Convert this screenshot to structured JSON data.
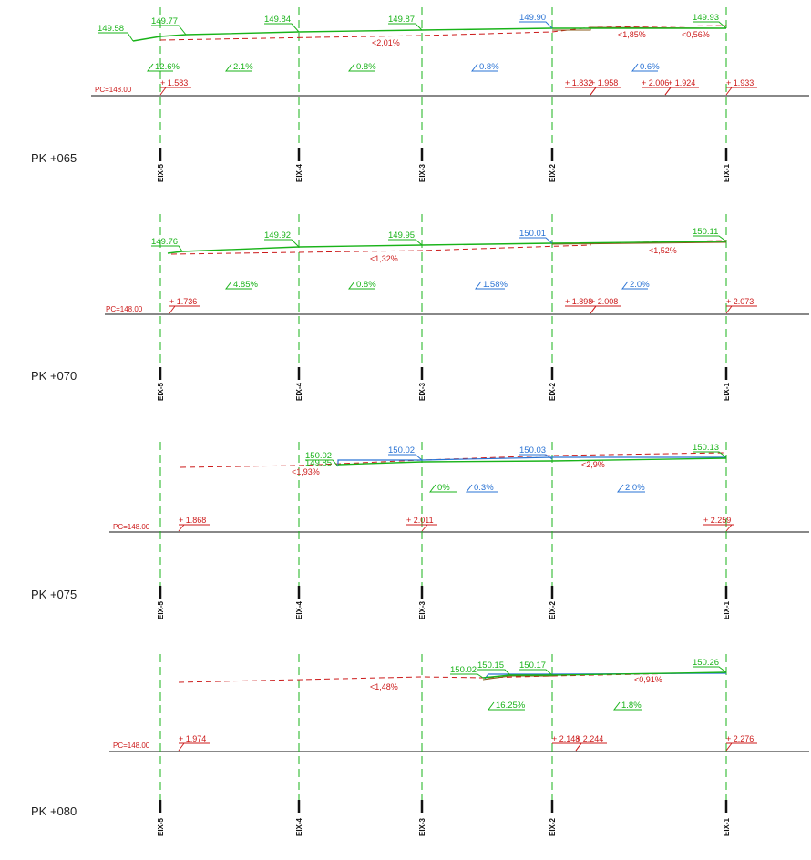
{
  "colors": {
    "green": "#19b319",
    "red": "#cc1a1a",
    "blue": "#2a73d4",
    "black": "#111111"
  },
  "axis_names": [
    "EIX-5",
    "EIX-4",
    "EIX-3",
    "EIX-2",
    "EIX-1"
  ],
  "sections": [
    {
      "pk": "PK +065",
      "pc_label": "PC=148.00",
      "elevations": [
        {
          "text": "149.58",
          "color": "green"
        },
        {
          "text": "149.77",
          "color": "green"
        },
        {
          "text": "149.84",
          "color": "green"
        },
        {
          "text": "149.87",
          "color": "green"
        },
        {
          "text": "149.90",
          "color": "blue"
        },
        {
          "text": "149.93",
          "color": "green"
        }
      ],
      "red_slopes": [
        "<2,01%",
        "<1,85%",
        "<0,56%"
      ],
      "slopes": [
        {
          "text": "12.6%",
          "color": "green"
        },
        {
          "text": "2.1%",
          "color": "green"
        },
        {
          "text": "0.8%",
          "color": "green"
        },
        {
          "text": "0.8%",
          "color": "blue"
        },
        {
          "text": "0.6%",
          "color": "blue"
        }
      ],
      "depths": [
        "+ 1.583",
        "+ 1.832",
        "+ 1.958",
        "+ 2.006",
        "+ 1.924",
        "+ 1.933"
      ]
    },
    {
      "pk": "PK +070",
      "pc_label": "PC=148.00",
      "elevations": [
        {
          "text": "149.76",
          "color": "green"
        },
        {
          "text": "149.92",
          "color": "green"
        },
        {
          "text": "149.95",
          "color": "green"
        },
        {
          "text": "150.01",
          "color": "blue"
        },
        {
          "text": "150.11",
          "color": "green"
        }
      ],
      "red_slopes": [
        "<1,32%",
        "<1,52%"
      ],
      "slopes": [
        {
          "text": "4.85%",
          "color": "green"
        },
        {
          "text": "0.8%",
          "color": "green"
        },
        {
          "text": "1.58%",
          "color": "blue"
        },
        {
          "text": "2.0%",
          "color": "blue"
        }
      ],
      "depths": [
        "+ 1.736",
        "+ 1.898",
        "+ 2.008",
        "+ 2.073"
      ]
    },
    {
      "pk": "PK +075",
      "pc_label": "PC=148.00",
      "elevations": [
        {
          "text": "150.02",
          "color": "green"
        },
        {
          "text": "149.85",
          "color": "green"
        },
        {
          "text": "150.02",
          "color": "blue"
        },
        {
          "text": "150.03",
          "color": "blue"
        },
        {
          "text": "150.13",
          "color": "green"
        }
      ],
      "red_slopes": [
        "<1,93%",
        "<2,9%"
      ],
      "slopes": [
        {
          "text": "0%",
          "color": "green"
        },
        {
          "text": "0.3%",
          "color": "blue"
        },
        {
          "text": "2.0%",
          "color": "blue"
        }
      ],
      "depths": [
        "+ 1.868",
        "+ 2.011",
        "+ 2.259"
      ]
    },
    {
      "pk": "PK +080",
      "pc_label": "PC=148.00",
      "elevations": [
        {
          "text": "150.02",
          "color": "green"
        },
        {
          "text": "150.15",
          "color": "green"
        },
        {
          "text": "150.17",
          "color": "green"
        },
        {
          "text": "150.26",
          "color": "green"
        }
      ],
      "red_slopes": [
        "<1,48%",
        "<0,91%"
      ],
      "slopes": [
        {
          "text": "16.25%",
          "color": "green"
        },
        {
          "text": "1.8%",
          "color": "green"
        }
      ],
      "depths": [
        "+ 1.974",
        "+ 2.148",
        "+ 2.244",
        "+ 2.276"
      ]
    }
  ]
}
